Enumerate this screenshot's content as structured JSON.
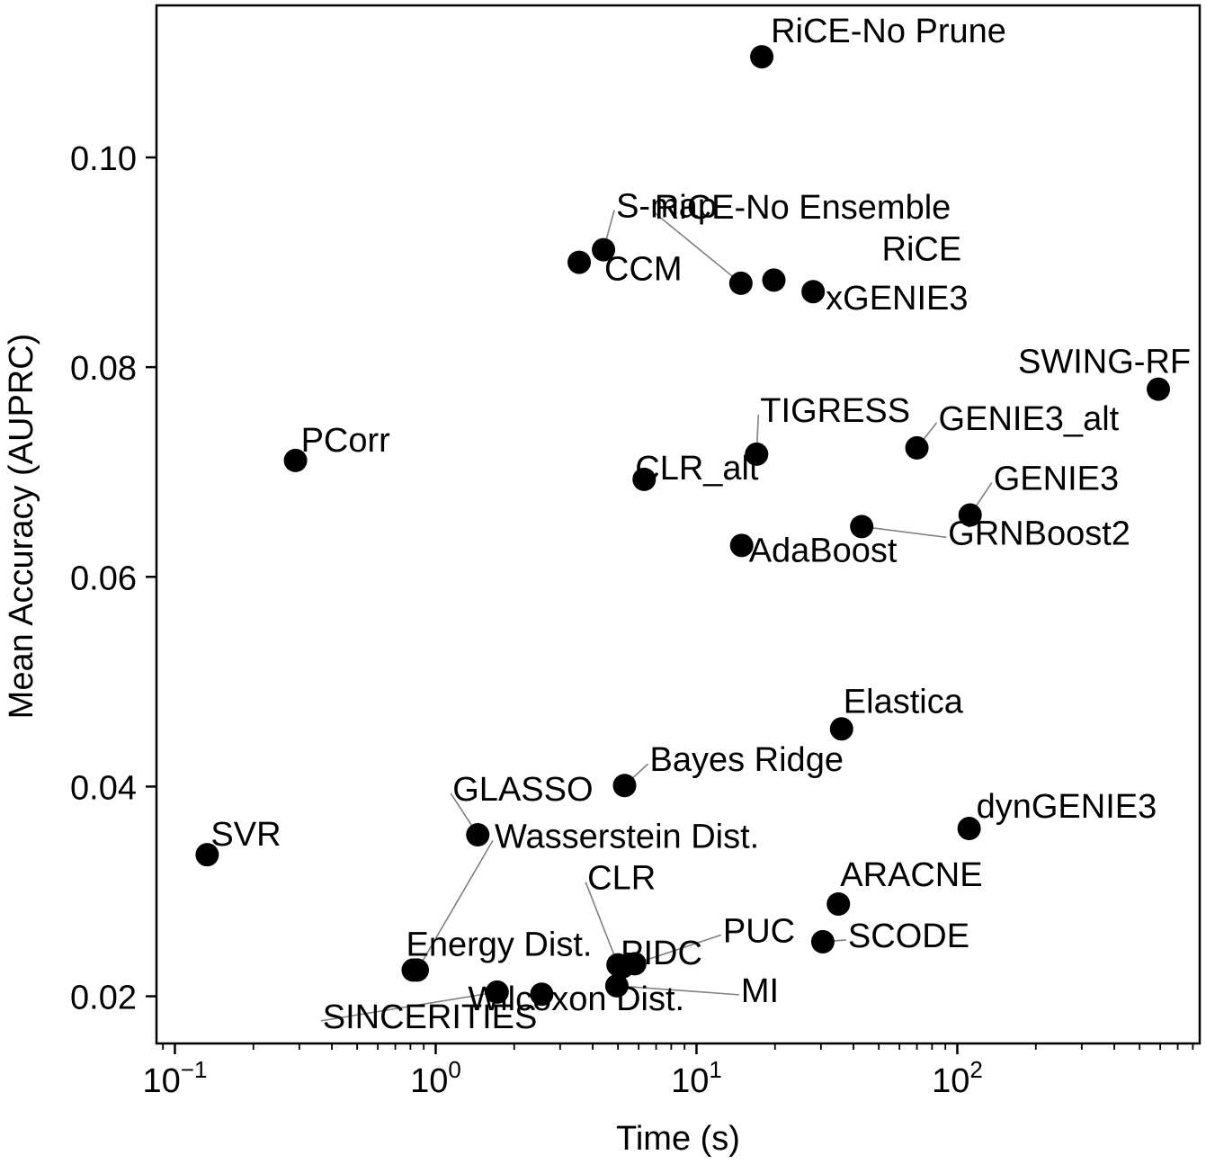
{
  "chart_data": {
    "type": "scatter",
    "xlabel": "Time (s)",
    "ylabel": "Mean Accuracy (AUPRC)",
    "xscale": "log",
    "xlim": [
      0.085,
      850
    ],
    "ylim": [
      0.0155,
      0.1145
    ],
    "xticks": [
      {
        "value": 0.1,
        "base": "10",
        "exp": "−1"
      },
      {
        "value": 1,
        "base": "10",
        "exp": "0"
      },
      {
        "value": 10,
        "base": "10",
        "exp": "1"
      },
      {
        "value": 100,
        "base": "10",
        "exp": "2"
      }
    ],
    "yticks": [
      {
        "value": 0.02,
        "label": "0.02"
      },
      {
        "value": 0.04,
        "label": "0.04"
      },
      {
        "value": 0.06,
        "label": "0.06"
      },
      {
        "value": 0.08,
        "label": "0.08"
      },
      {
        "value": 0.1,
        "label": "0.10"
      }
    ],
    "grid": false,
    "marker_color": "#000000",
    "leader_color": "#808080",
    "points": [
      {
        "label": "RiCE-No Prune",
        "x": 17.8,
        "y": 0.1096
      },
      {
        "label": "S-map",
        "x": 4.4,
        "y": 0.0912
      },
      {
        "label": "RiCE-No Ensemble",
        "x": 14.8,
        "y": 0.088
      },
      {
        "label": "CCM",
        "x": 3.55,
        "y": 0.09
      },
      {
        "label": "RiCE",
        "x": 19.8,
        "y": 0.0883
      },
      {
        "label": "xGENIE3",
        "x": 28.0,
        "y": 0.0872
      },
      {
        "label": "SWING-RF",
        "x": 590,
        "y": 0.0779
      },
      {
        "label": "PCorr",
        "x": 0.29,
        "y": 0.0711
      },
      {
        "label": "TIGRESS",
        "x": 17.0,
        "y": 0.0717
      },
      {
        "label": "GENIE3_alt",
        "x": 70,
        "y": 0.0723
      },
      {
        "label": "CLR_alt",
        "x": 6.3,
        "y": 0.0693
      },
      {
        "label": "GENIE3",
        "x": 112,
        "y": 0.0659
      },
      {
        "label": "GRNBoost2",
        "x": 43,
        "y": 0.0648
      },
      {
        "label": "AdaBoost",
        "x": 14.9,
        "y": 0.063
      },
      {
        "label": "Elastica",
        "x": 36,
        "y": 0.0455
      },
      {
        "label": "Bayes Ridge",
        "x": 5.3,
        "y": 0.0401
      },
      {
        "label": "GLASSO",
        "x": 1.45,
        "y": 0.0354
      },
      {
        "label": "Wasserstein Dist.",
        "x": 0.85,
        "y": 0.0225
      },
      {
        "label": "SVR",
        "x": 0.133,
        "y": 0.0335
      },
      {
        "label": "dynGENIE3",
        "x": 111,
        "y": 0.036
      },
      {
        "label": "ARACNE",
        "x": 35,
        "y": 0.0288
      },
      {
        "label": "CLR",
        "x": 5.0,
        "y": 0.023
      },
      {
        "label": "PUC",
        "x": 5.8,
        "y": 0.0231
      },
      {
        "label": "PIDC",
        "x": 5.2,
        "y": 0.0228
      },
      {
        "label": "SCODE",
        "x": 30.5,
        "y": 0.0252
      },
      {
        "label": "Energy Dist.",
        "x": 0.82,
        "y": 0.0225
      },
      {
        "label": "MI",
        "x": 4.95,
        "y": 0.021
      },
      {
        "label": "Wilcoxon Dist.",
        "x": 2.55,
        "y": 0.0202
      },
      {
        "label": "SINCERITIES",
        "x": 1.72,
        "y": 0.0204
      }
    ]
  }
}
